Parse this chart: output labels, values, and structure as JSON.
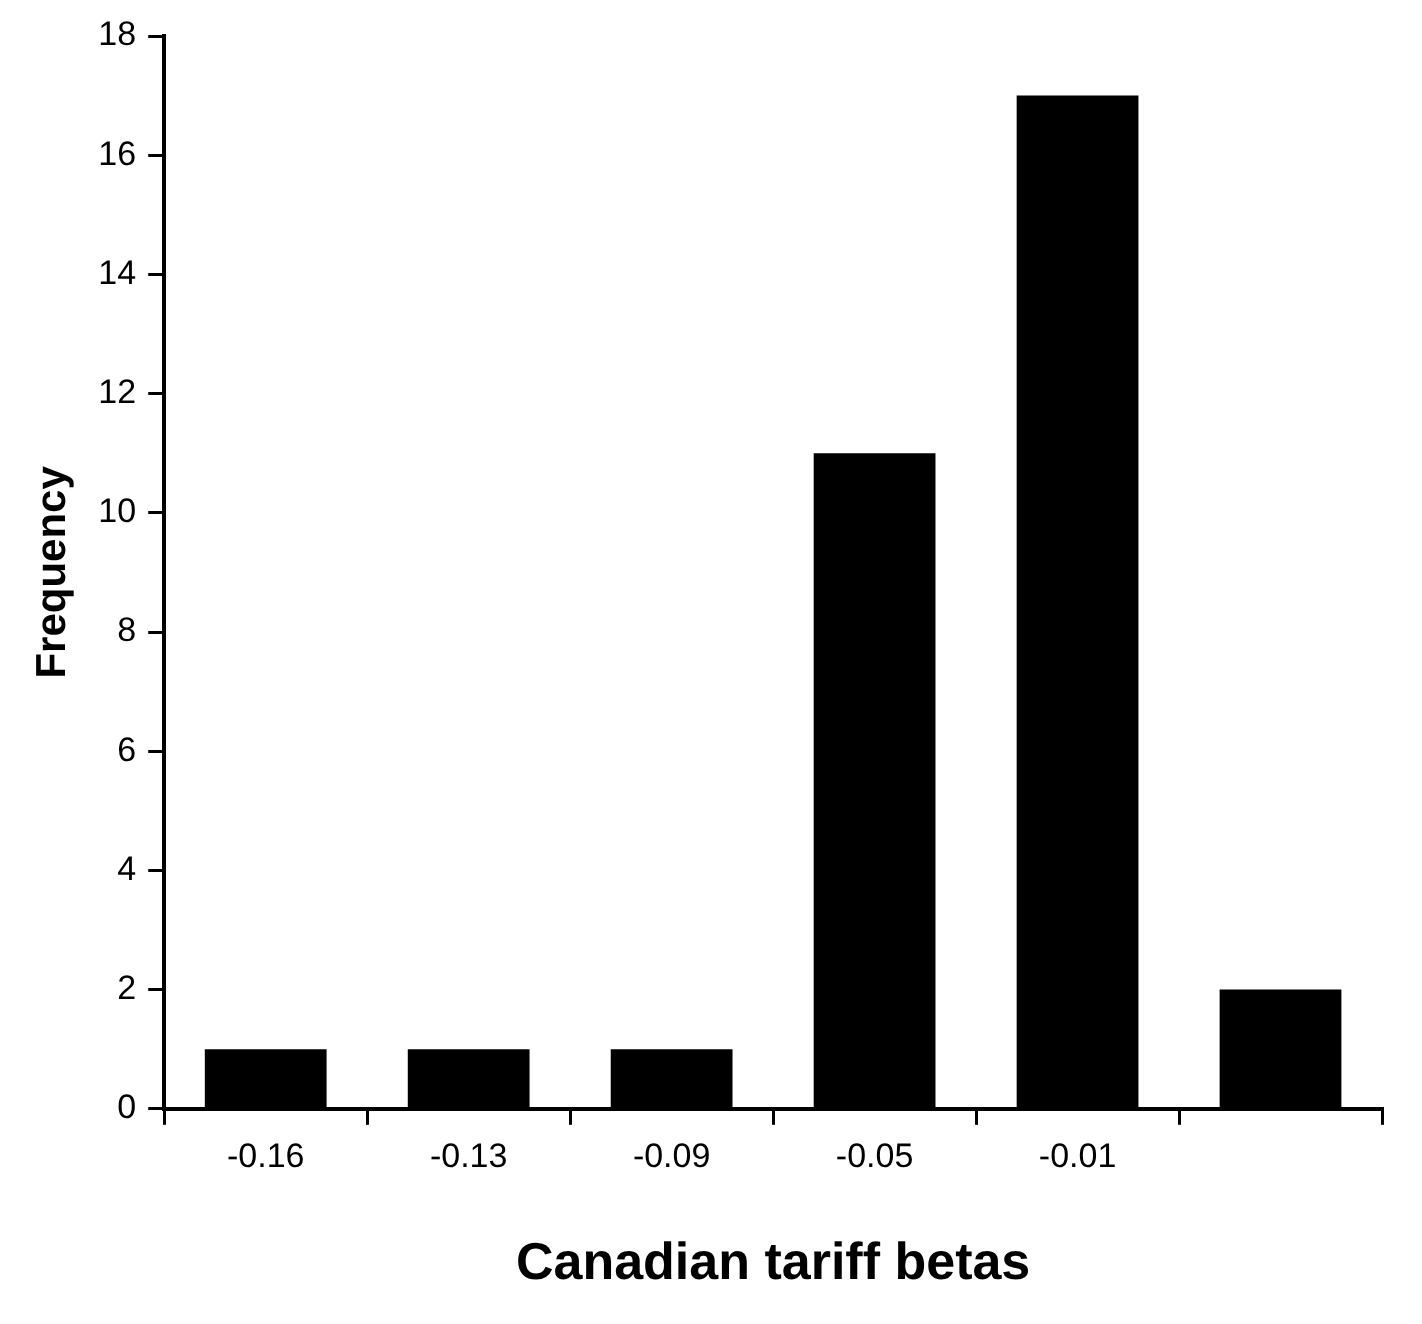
{
  "chart_data": {
    "type": "bar",
    "xlabel": "Canadian tariff betas",
    "ylabel": "Frequency",
    "categories": [
      "-0.16",
      "-0.13",
      "-0.09",
      "-0.05",
      "-0.01",
      null
    ],
    "values": [
      1,
      1,
      1,
      11,
      17,
      2
    ],
    "color": "#000000",
    "ylim": [
      0,
      18
    ],
    "yticks": [
      0,
      2,
      4,
      6,
      8,
      10,
      12,
      14,
      16,
      18
    ],
    "grid": false,
    "legend": false
  }
}
